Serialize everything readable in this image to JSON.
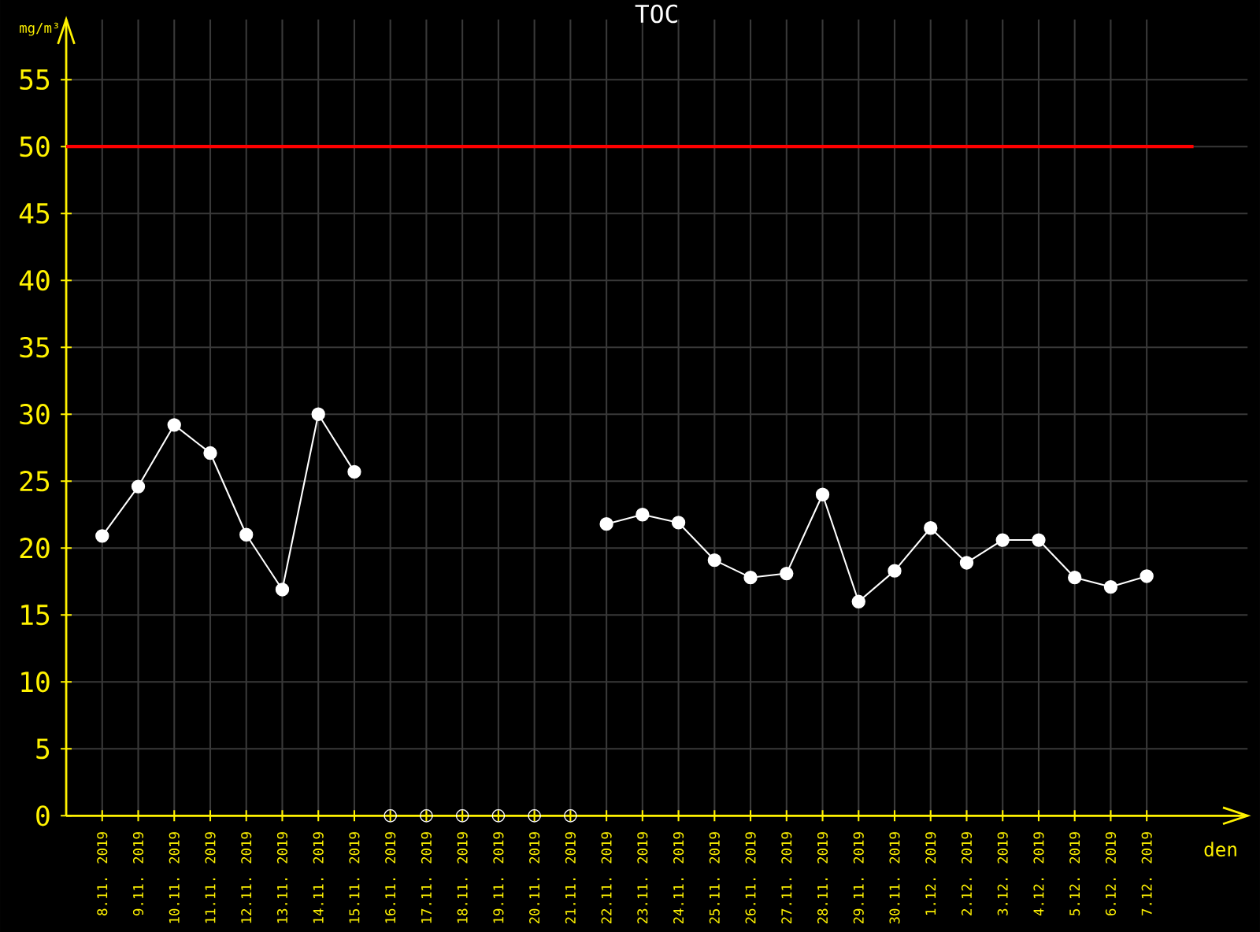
{
  "chart_data": {
    "type": "line",
    "title": "TOC",
    "xlabel": "den",
    "ylabel": "mg/m³",
    "categories": [
      "8.11. 2019",
      "9.11. 2019",
      "10.11. 2019",
      "11.11. 2019",
      "12.11. 2019",
      "13.11. 2019",
      "14.11. 2019",
      "15.11. 2019",
      "16.11. 2019",
      "17.11. 2019",
      "18.11. 2019",
      "19.11. 2019",
      "20.11. 2019",
      "21.11. 2019",
      "22.11. 2019",
      "23.11. 2019",
      "24.11. 2019",
      "25.11. 2019",
      "26.11. 2019",
      "27.11. 2019",
      "28.11. 2019",
      "29.11. 2019",
      "30.11. 2019",
      "1.12. 2019",
      "2.12. 2019",
      "3.12. 2019",
      "4.12. 2019",
      "5.12. 2019",
      "6.12. 2019",
      "7.12. 2019"
    ],
    "series": [
      {
        "color": "#ffffff",
        "marker": "circle",
        "values": [
          20.9,
          24.6,
          29.2,
          27.1,
          21.0,
          16.9,
          30.0,
          25.7,
          null,
          null,
          null,
          null,
          null,
          null,
          21.8,
          22.5,
          21.9,
          19.1,
          17.8,
          18.1,
          24.0,
          16.0,
          18.3,
          21.5,
          18.9,
          20.6,
          20.6,
          17.8,
          17.1,
          17.9
        ]
      },
      {
        "type": "scatter",
        "color": "#ffffff",
        "marker": "circle",
        "values": [
          null,
          null,
          null,
          null,
          null,
          null,
          null,
          null,
          0,
          0,
          0,
          0,
          0,
          0,
          null,
          null,
          null,
          null,
          null,
          null,
          null,
          null,
          null,
          null,
          null,
          null,
          null,
          null,
          null,
          null
        ]
      }
    ],
    "ylim": [
      0,
      59.5
    ],
    "yticks": [
      0,
      5,
      10,
      15,
      20,
      25,
      30,
      35,
      40,
      45,
      50,
      55
    ],
    "grid": true,
    "ref_lines": [
      {
        "axis": "y",
        "value": 50,
        "color": "#ff0000"
      }
    ]
  }
}
